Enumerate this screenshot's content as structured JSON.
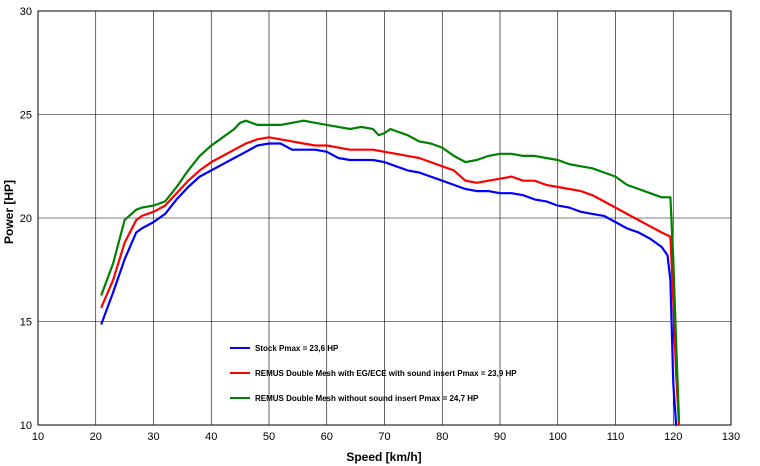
{
  "chart_data": {
    "type": "line",
    "xlabel": "Speed [km/h]",
    "ylabel": "Power [HP]",
    "xlim": [
      10,
      130
    ],
    "ylim": [
      10,
      30
    ],
    "x_ticks": [
      10,
      20,
      30,
      40,
      50,
      60,
      70,
      80,
      90,
      100,
      110,
      120,
      130
    ],
    "y_ticks": [
      10,
      15,
      20,
      25,
      30
    ],
    "grid": true,
    "legend_position": "bottom-center",
    "series": [
      {
        "name": "Stock Pmax = 23,6 HP",
        "color": "#0000ff",
        "x": [
          21,
          23,
          25,
          27,
          28,
          30,
          32,
          34,
          36,
          38,
          40,
          42,
          44,
          46,
          48,
          50,
          52,
          54,
          56,
          58,
          60,
          62,
          64,
          66,
          68,
          70,
          72,
          74,
          76,
          78,
          80,
          82,
          84,
          86,
          88,
          90,
          92,
          94,
          96,
          98,
          100,
          102,
          104,
          106,
          108,
          110,
          112,
          114,
          116,
          118,
          119,
          119.5,
          120,
          120.5
        ],
        "y": [
          14.9,
          16.4,
          18.0,
          19.3,
          19.5,
          19.8,
          20.2,
          20.9,
          21.5,
          22.0,
          22.3,
          22.6,
          22.9,
          23.2,
          23.5,
          23.6,
          23.6,
          23.3,
          23.3,
          23.3,
          23.2,
          22.9,
          22.8,
          22.8,
          22.8,
          22.7,
          22.5,
          22.3,
          22.2,
          22.0,
          21.8,
          21.6,
          21.4,
          21.3,
          21.3,
          21.2,
          21.2,
          21.1,
          20.9,
          20.8,
          20.6,
          20.5,
          20.3,
          20.2,
          20.1,
          19.8,
          19.5,
          19.3,
          19.0,
          18.6,
          18.2,
          17.0,
          12.0,
          10.0
        ]
      },
      {
        "name": "REMUS Double Mesh with EG/ECE with sound insert Pmax = 23,9 HP",
        "color": "#ff0000",
        "x": [
          21,
          23,
          25,
          27,
          28,
          30,
          32,
          34,
          36,
          38,
          40,
          42,
          44,
          46,
          48,
          50,
          52,
          54,
          56,
          58,
          60,
          62,
          64,
          66,
          68,
          70,
          72,
          74,
          76,
          78,
          80,
          82,
          84,
          86,
          88,
          90,
          92,
          94,
          96,
          98,
          100,
          102,
          104,
          106,
          108,
          110,
          112,
          114,
          116,
          118,
          119.5,
          120,
          120.5,
          121
        ],
        "y": [
          15.7,
          17.0,
          18.8,
          19.9,
          20.1,
          20.3,
          20.6,
          21.2,
          21.8,
          22.3,
          22.7,
          23.0,
          23.3,
          23.6,
          23.8,
          23.9,
          23.8,
          23.7,
          23.6,
          23.5,
          23.5,
          23.4,
          23.3,
          23.3,
          23.3,
          23.2,
          23.1,
          23.0,
          22.9,
          22.7,
          22.5,
          22.3,
          21.8,
          21.7,
          21.8,
          21.9,
          22.0,
          21.8,
          21.8,
          21.6,
          21.5,
          21.4,
          21.3,
          21.1,
          20.8,
          20.5,
          20.2,
          19.9,
          19.6,
          19.3,
          19.1,
          16.0,
          12.5,
          10.0
        ]
      },
      {
        "name": "REMUS Double Mesh without sound insert Pmax = 24,7 HP",
        "color": "#008000",
        "x": [
          21,
          23,
          25,
          27,
          28,
          30,
          32,
          34,
          36,
          38,
          40,
          42,
          44,
          45,
          46,
          48,
          50,
          52,
          54,
          56,
          58,
          60,
          62,
          64,
          66,
          68,
          69,
          70,
          71,
          72,
          74,
          76,
          78,
          80,
          82,
          84,
          86,
          88,
          90,
          92,
          94,
          96,
          98,
          100,
          102,
          104,
          106,
          108,
          110,
          112,
          114,
          116,
          118,
          119.5,
          120,
          120.5,
          121
        ],
        "y": [
          16.3,
          17.8,
          19.9,
          20.4,
          20.5,
          20.6,
          20.8,
          21.5,
          22.3,
          23.0,
          23.5,
          23.9,
          24.3,
          24.6,
          24.7,
          24.5,
          24.5,
          24.5,
          24.6,
          24.7,
          24.6,
          24.5,
          24.4,
          24.3,
          24.4,
          24.3,
          24.0,
          24.1,
          24.3,
          24.2,
          24.0,
          23.7,
          23.6,
          23.4,
          23.0,
          22.7,
          22.8,
          23.0,
          23.1,
          23.1,
          23.0,
          23.0,
          22.9,
          22.8,
          22.6,
          22.5,
          22.4,
          22.2,
          22.0,
          21.6,
          21.4,
          21.2,
          21.0,
          21.0,
          18.0,
          14.0,
          10.2
        ]
      }
    ]
  }
}
